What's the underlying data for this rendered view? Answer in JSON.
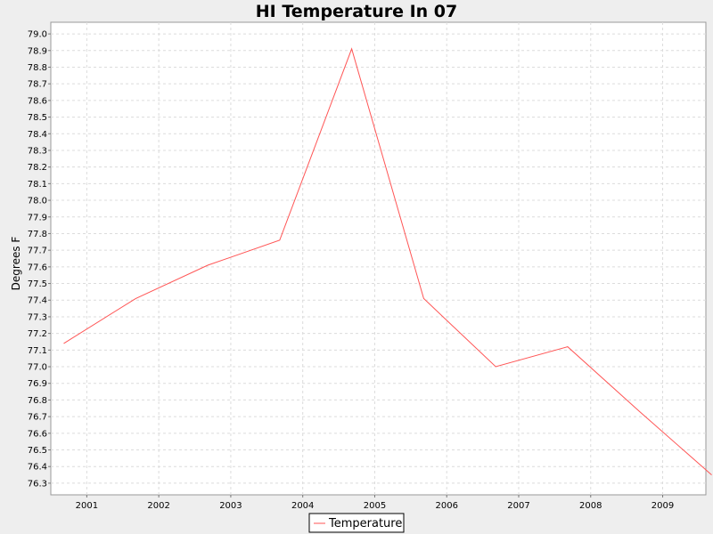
{
  "chart_data": {
    "type": "line",
    "title": "HI Temperature In 07",
    "xlabel": "",
    "ylabel": "Degrees F",
    "x_ticks": [
      "2001",
      "2002",
      "2003",
      "2004",
      "2005",
      "2006",
      "2007",
      "2008",
      "2009"
    ],
    "x_range": [
      2000.5,
      2009.6
    ],
    "ylim": [
      76.23,
      79.07
    ],
    "y_ticks": [
      76.3,
      76.4,
      76.5,
      76.6,
      76.7,
      76.8,
      76.9,
      77.0,
      77.1,
      77.2,
      77.3,
      77.4,
      77.5,
      77.6,
      77.7,
      77.8,
      77.9,
      78.0,
      78.1,
      78.2,
      78.3,
      78.4,
      78.5,
      78.6,
      78.7,
      78.8,
      78.9,
      79.0
    ],
    "y_tick_decimals": 1,
    "grid": true,
    "legend_position": "bottom-center",
    "series": [
      {
        "name": "Temperature",
        "color": "#ff5555",
        "x": [
          2000.68,
          2001.68,
          2002.68,
          2003.68,
          2004.68,
          2005.68,
          2006.68,
          2007.68,
          2008.68,
          2009.68
        ],
        "values": [
          77.14,
          77.41,
          77.61,
          77.76,
          78.91,
          77.41,
          77.0,
          77.12,
          76.73,
          76.35
        ]
      }
    ]
  }
}
